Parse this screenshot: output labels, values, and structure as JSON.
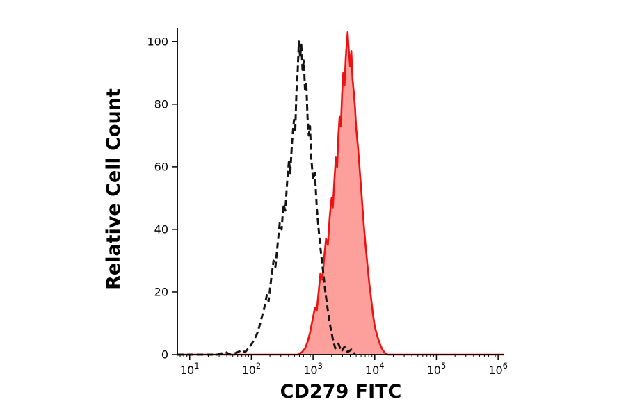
{
  "page": {
    "background": "#ffffff"
  },
  "chart_data": {
    "type": "area",
    "subtype": "flow-cytometry-histogram",
    "title": "",
    "xlabel": "CD279 FITC",
    "ylabel": "Relative Cell Count",
    "x_scale": "log10",
    "xlim_log10": [
      0.8,
      6.1
    ],
    "ylim": [
      0,
      104.4
    ],
    "yticks": [
      0,
      20,
      40,
      60,
      80,
      100
    ],
    "xtick_exponents": [
      1,
      2,
      3,
      4,
      5,
      6
    ],
    "grid": false,
    "legend": "none",
    "axis_color": "#000000",
    "series": [
      {
        "name": "cd279-fitc-stained",
        "label": "CD279 FITC stained (red filled)",
        "line_style": "solid",
        "color": "#ee1111",
        "fill": "rgba(250,45,35,0.45)",
        "peak_log10x": 3.56,
        "peak_y": 103,
        "points": [
          [
            0.8,
            0
          ],
          [
            2.76,
            0
          ],
          [
            2.82,
            0.8
          ],
          [
            2.87,
            2
          ],
          [
            2.91,
            4
          ],
          [
            2.95,
            7
          ],
          [
            2.99,
            11
          ],
          [
            3.03,
            15
          ],
          [
            3.06,
            14
          ],
          [
            3.09,
            20
          ],
          [
            3.12,
            26
          ],
          [
            3.15,
            24
          ],
          [
            3.18,
            31
          ],
          [
            3.21,
            37
          ],
          [
            3.24,
            35
          ],
          [
            3.27,
            44
          ],
          [
            3.3,
            50
          ],
          [
            3.32,
            47
          ],
          [
            3.35,
            57
          ],
          [
            3.37,
            63
          ],
          [
            3.39,
            60
          ],
          [
            3.41,
            70
          ],
          [
            3.43,
            76
          ],
          [
            3.45,
            73
          ],
          [
            3.47,
            83
          ],
          [
            3.49,
            90
          ],
          [
            3.51,
            86
          ],
          [
            3.53,
            95
          ],
          [
            3.56,
            103
          ],
          [
            3.58,
            97
          ],
          [
            3.6,
            92
          ],
          [
            3.62,
            97
          ],
          [
            3.64,
            88
          ],
          [
            3.66,
            84
          ],
          [
            3.68,
            79
          ],
          [
            3.7,
            72
          ],
          [
            3.73,
            66
          ],
          [
            3.76,
            58
          ],
          [
            3.79,
            50
          ],
          [
            3.82,
            42
          ],
          [
            3.85,
            35
          ],
          [
            3.88,
            29
          ],
          [
            3.91,
            23
          ],
          [
            3.94,
            18
          ],
          [
            3.97,
            13
          ],
          [
            4.0,
            9
          ],
          [
            4.04,
            6
          ],
          [
            4.08,
            3.5
          ],
          [
            4.12,
            1.8
          ],
          [
            4.16,
            0.6
          ],
          [
            4.21,
            0
          ],
          [
            6.1,
            0
          ]
        ]
      },
      {
        "name": "unstained-control",
        "label": "control (black dashed)",
        "line_style": "dashed",
        "color": "#141414",
        "fill": "none",
        "peak_log10x": 2.77,
        "peak_y": 100,
        "points": [
          [
            0.8,
            0
          ],
          [
            1.45,
            0
          ],
          [
            1.58,
            0.8
          ],
          [
            1.66,
            0
          ],
          [
            1.76,
            0.6
          ],
          [
            1.84,
            1.4
          ],
          [
            1.9,
            0.8
          ],
          [
            1.95,
            2
          ],
          [
            2.0,
            3.2
          ],
          [
            2.05,
            5
          ],
          [
            2.09,
            6.5
          ],
          [
            2.13,
            9
          ],
          [
            2.17,
            12
          ],
          [
            2.21,
            15
          ],
          [
            2.25,
            19
          ],
          [
            2.28,
            17
          ],
          [
            2.32,
            24
          ],
          [
            2.36,
            30
          ],
          [
            2.39,
            28
          ],
          [
            2.43,
            36
          ],
          [
            2.46,
            42
          ],
          [
            2.49,
            40
          ],
          [
            2.52,
            48
          ],
          [
            2.55,
            46
          ],
          [
            2.58,
            55
          ],
          [
            2.61,
            62
          ],
          [
            2.63,
            58
          ],
          [
            2.66,
            68
          ],
          [
            2.69,
            75
          ],
          [
            2.71,
            71
          ],
          [
            2.73,
            84
          ],
          [
            2.75,
            90
          ],
          [
            2.77,
            100
          ],
          [
            2.79,
            95
          ],
          [
            2.81,
            99
          ],
          [
            2.83,
            91
          ],
          [
            2.85,
            94
          ],
          [
            2.87,
            84
          ],
          [
            2.89,
            87
          ],
          [
            2.91,
            76
          ],
          [
            2.93,
            70
          ],
          [
            2.95,
            73
          ],
          [
            2.97,
            63
          ],
          [
            3.0,
            56
          ],
          [
            3.03,
            58
          ],
          [
            3.06,
            47
          ],
          [
            3.09,
            40
          ],
          [
            3.12,
            34
          ],
          [
            3.16,
            27
          ],
          [
            3.2,
            20
          ],
          [
            3.24,
            14
          ],
          [
            3.28,
            9
          ],
          [
            3.32,
            5
          ],
          [
            3.36,
            2
          ],
          [
            3.41,
            3.5
          ],
          [
            3.46,
            1
          ],
          [
            3.51,
            2.5
          ],
          [
            3.56,
            0.8
          ],
          [
            3.62,
            1.6
          ],
          [
            3.68,
            0
          ]
        ]
      }
    ]
  }
}
